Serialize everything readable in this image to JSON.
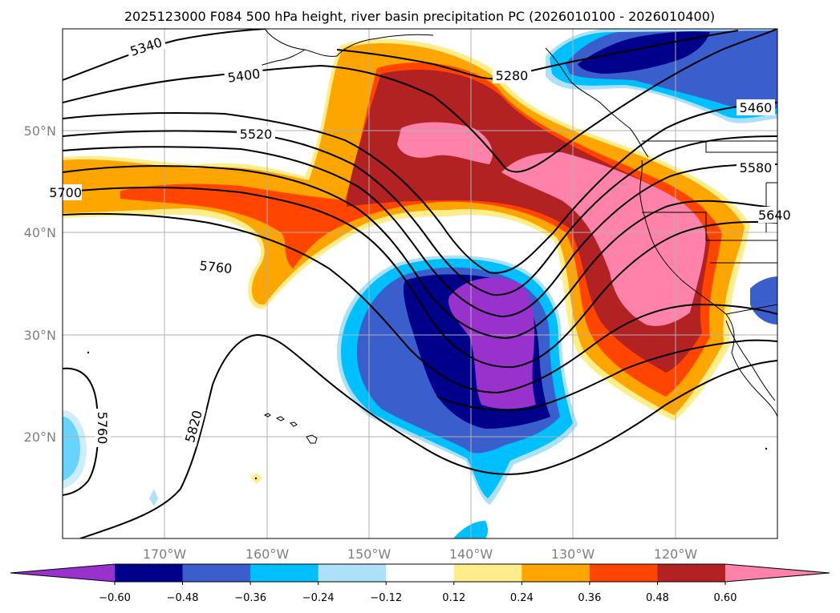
{
  "title": "2025123000 F084 500 hPa height, river basin precipitation PC (2026010100 - 2026010400)",
  "map": {
    "lat_labels": [
      "50°N",
      "40°N",
      "30°N",
      "20°N"
    ],
    "lon_labels": [
      "170°W",
      "160°W",
      "150°W",
      "140°W",
      "130°W",
      "120°W"
    ],
    "contour_labels": [
      {
        "text": "5340"
      },
      {
        "text": "5400"
      },
      {
        "text": "5280"
      },
      {
        "text": "5460"
      },
      {
        "text": "5520"
      },
      {
        "text": "5580"
      },
      {
        "text": "5640"
      },
      {
        "text": "5700"
      },
      {
        "text": "5760"
      },
      {
        "text": "5820"
      },
      {
        "text": "5760"
      }
    ]
  },
  "colorbar": {
    "ticks": [
      "−0.60",
      "−0.48",
      "−0.36",
      "−0.24",
      "−0.12",
      "0.12",
      "0.24",
      "0.36",
      "0.48",
      "0.60"
    ],
    "colors": [
      "#9932CC",
      "#00008B",
      "#3A5FCD",
      "#00BFFF",
      "#ADE1FA",
      "#FFFFFF",
      "#FFEC8B",
      "#FFA500",
      "#FF4500",
      "#B22222",
      "#FF82AB"
    ]
  }
}
